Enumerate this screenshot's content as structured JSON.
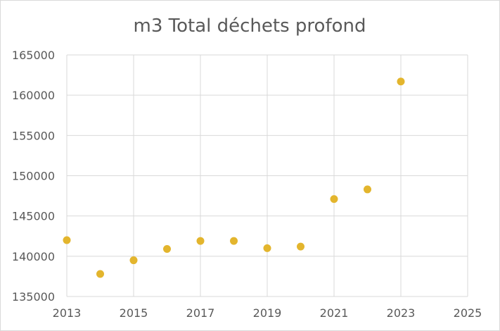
{
  "chart_data": {
    "type": "scatter",
    "title": "m3 Total déchets profond",
    "xlabel": "",
    "ylabel": "",
    "xlim": [
      2013,
      2025
    ],
    "ylim": [
      135000,
      165000
    ],
    "x_ticks": [
      2013,
      2015,
      2017,
      2019,
      2021,
      2023,
      2025
    ],
    "y_ticks": [
      135000,
      140000,
      145000,
      150000,
      155000,
      160000,
      165000
    ],
    "grid": true,
    "legend": "none",
    "marker_color": "#e3b52d",
    "series": [
      {
        "x": [
          2013,
          2014,
          2015,
          2016,
          2017,
          2018,
          2019,
          2020,
          2021,
          2022,
          2023
        ],
        "y": [
          142000,
          137800,
          139500,
          140900,
          141900,
          141900,
          141000,
          141200,
          147100,
          148300,
          161700
        ]
      }
    ]
  }
}
